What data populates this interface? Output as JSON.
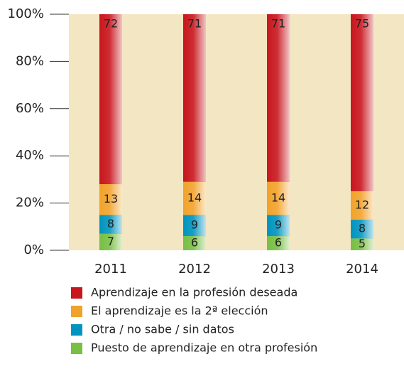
{
  "chart_data": {
    "type": "stacked_bar",
    "categories": [
      "2011",
      "2012",
      "2013",
      "2014"
    ],
    "series": [
      {
        "name": "Aprendizaje en la profesión deseada",
        "color": "#c8161d",
        "values": [
          72,
          71,
          71,
          75
        ]
      },
      {
        "name": "El aprendizaje es la 2ª elección",
        "color": "#f2a22a",
        "values": [
          13,
          14,
          14,
          12
        ]
      },
      {
        "name": "Otra / no sabe / sin datos",
        "color": "#0094bf",
        "values": [
          8,
          9,
          9,
          8
        ]
      },
      {
        "name": "Puesto de aprendizaje en otra profesión",
        "color": "#78bf44",
        "values": [
          7,
          6,
          6,
          5
        ]
      }
    ],
    "ylim": [
      0,
      100
    ],
    "yticks": [
      {
        "value": 0,
        "label": "0%"
      },
      {
        "value": 20,
        "label": "20%"
      },
      {
        "value": 40,
        "label": "40%"
      },
      {
        "value": 60,
        "label": "60%"
      },
      {
        "value": 80,
        "label": "80%"
      },
      {
        "value": 100,
        "label": "100%"
      }
    ],
    "background": "#f3e6c2"
  }
}
